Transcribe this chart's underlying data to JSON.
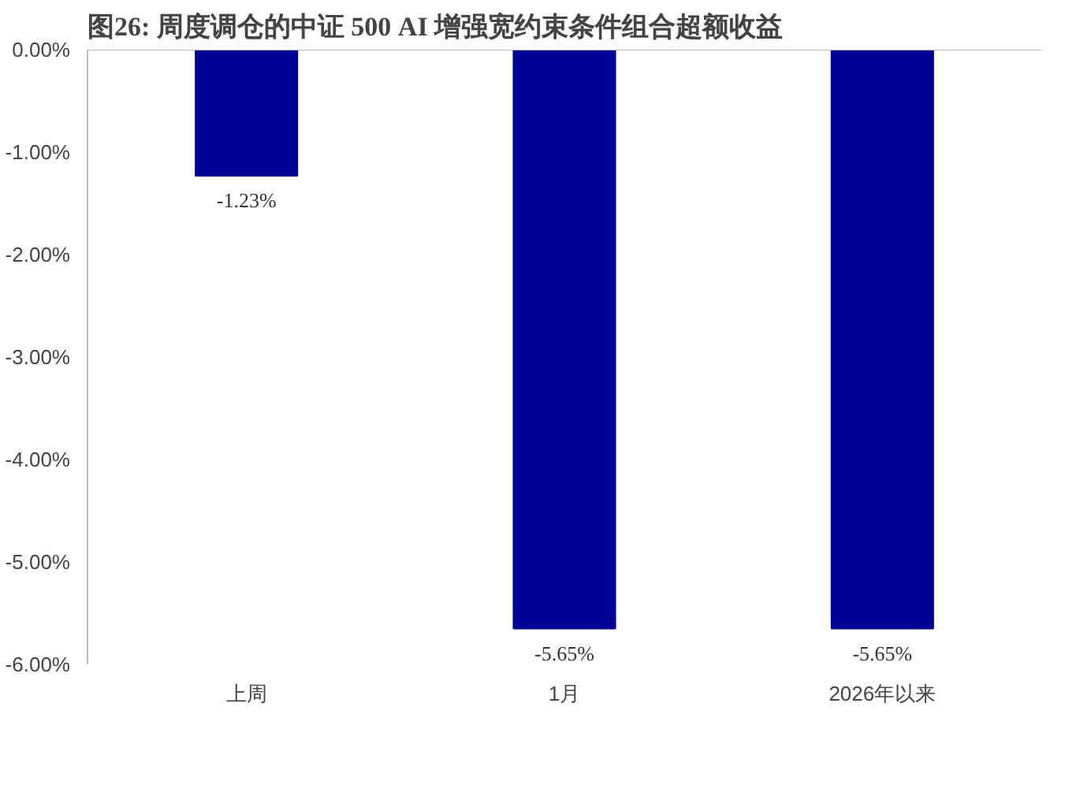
{
  "chart_data": {
    "type": "bar",
    "title": "图26:  周度调仓的中证 500 AI 增强宽约束条件组合超额收益",
    "categories": [
      "上周",
      "1月",
      "2026年以来"
    ],
    "values": [
      -1.23,
      -5.65,
      -5.65
    ],
    "value_labels": [
      "-1.23%",
      "-5.65%",
      "-5.65%"
    ],
    "color": "#000099",
    "ylim": [
      -6,
      0
    ],
    "yticks": [
      {
        "value": 0,
        "label": "0.00%"
      },
      {
        "value": -1,
        "label": "-1.00%"
      },
      {
        "value": -2,
        "label": "-2.00%"
      },
      {
        "value": -3,
        "label": "-3.00%"
      },
      {
        "value": -4,
        "label": "-4.00%"
      },
      {
        "value": -5,
        "label": "-5.00%"
      },
      {
        "value": -6,
        "label": "-6.00%"
      }
    ],
    "grid": false
  }
}
